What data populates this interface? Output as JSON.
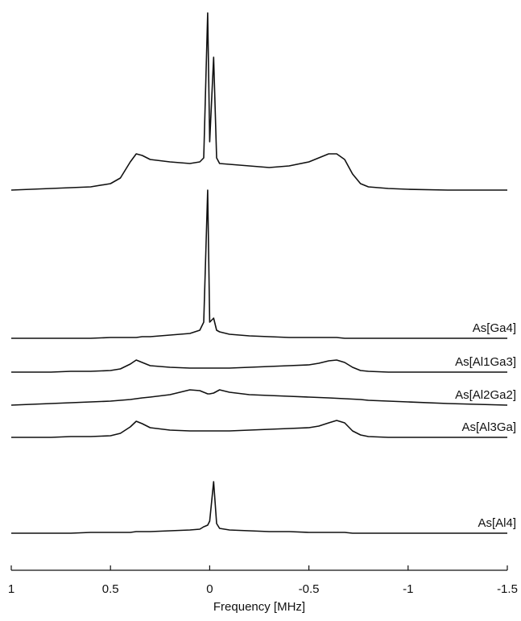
{
  "chart_data": {
    "type": "line",
    "xlabel": "Frequency [MHz]",
    "xlim": [
      1,
      -1.5
    ],
    "xticks": [
      1,
      0.5,
      0,
      -0.5,
      -1,
      -1.5
    ],
    "x": [
      1,
      0.9,
      0.8,
      0.7,
      0.6,
      0.5,
      0.45,
      0.4,
      0.37,
      0.34,
      0.3,
      0.2,
      0.1,
      0.05,
      0.03,
      0.01,
      0,
      -0.02,
      -0.035,
      -0.05,
      -0.1,
      -0.2,
      -0.3,
      -0.4,
      -0.5,
      -0.55,
      -0.6,
      -0.64,
      -0.68,
      -0.72,
      -0.76,
      -0.8,
      -0.9,
      -1,
      -1.2,
      -1.5
    ],
    "series": [
      {
        "color": "#111",
        "values": [
          0,
          1,
          2,
          3,
          4,
          8,
          15,
          35,
          45,
          43,
          38,
          35,
          33,
          35,
          40,
          220,
          60,
          165,
          40,
          33,
          32,
          30,
          28,
          30,
          35,
          40,
          45,
          45,
          38,
          20,
          8,
          4,
          2,
          1,
          0,
          0
        ]
      },
      {
        "name": "As[Ga4]",
        "color": "#111",
        "values": [
          0,
          0,
          0,
          0,
          0,
          1,
          1,
          1,
          1,
          2,
          2,
          4,
          6,
          10,
          20,
          184,
          20,
          25,
          10,
          8,
          5,
          3,
          2,
          1,
          1,
          1,
          1,
          1,
          0,
          0,
          0,
          0,
          0,
          0,
          0,
          0
        ]
      },
      {
        "name": "As[Al1Ga3]",
        "color": "#111",
        "values": [
          0,
          0,
          0,
          1,
          1,
          2,
          4,
          10,
          15,
          12,
          8,
          6,
          5,
          5,
          5,
          5,
          5,
          5,
          5,
          5,
          5,
          6,
          7,
          8,
          9,
          11,
          14,
          15,
          12,
          6,
          2,
          1,
          0,
          0,
          0,
          0
        ]
      },
      {
        "name": "As[Al2Ga2]",
        "color": "#111",
        "values": [
          0,
          1,
          2,
          3,
          4,
          5,
          6,
          7,
          8,
          9,
          10,
          13,
          19,
          18,
          16,
          14,
          14,
          15,
          17,
          19,
          16,
          13,
          12,
          11,
          10,
          9.5,
          9,
          8.5,
          8,
          7.5,
          7,
          6,
          5,
          4,
          2,
          0
        ]
      },
      {
        "name": "As[Al3Ga]",
        "color": "#111",
        "values": [
          0,
          0,
          0,
          1,
          1,
          2,
          5,
          13,
          20,
          17,
          12,
          9,
          8,
          8,
          8,
          8,
          8,
          8,
          8,
          8,
          8,
          9,
          10,
          11,
          12,
          14,
          18,
          21,
          18,
          8,
          3,
          1,
          0,
          0,
          0,
          0
        ]
      },
      {
        "name": "As[Al4]",
        "color": "#111",
        "values": [
          0,
          0,
          0,
          0,
          1,
          1,
          1,
          1,
          2,
          2,
          2,
          3,
          4,
          5,
          8,
          10,
          15,
          64,
          12,
          6,
          4,
          3,
          2,
          2,
          1,
          1,
          1,
          1,
          1,
          0,
          0,
          0,
          0,
          0,
          0,
          0
        ]
      }
    ]
  }
}
